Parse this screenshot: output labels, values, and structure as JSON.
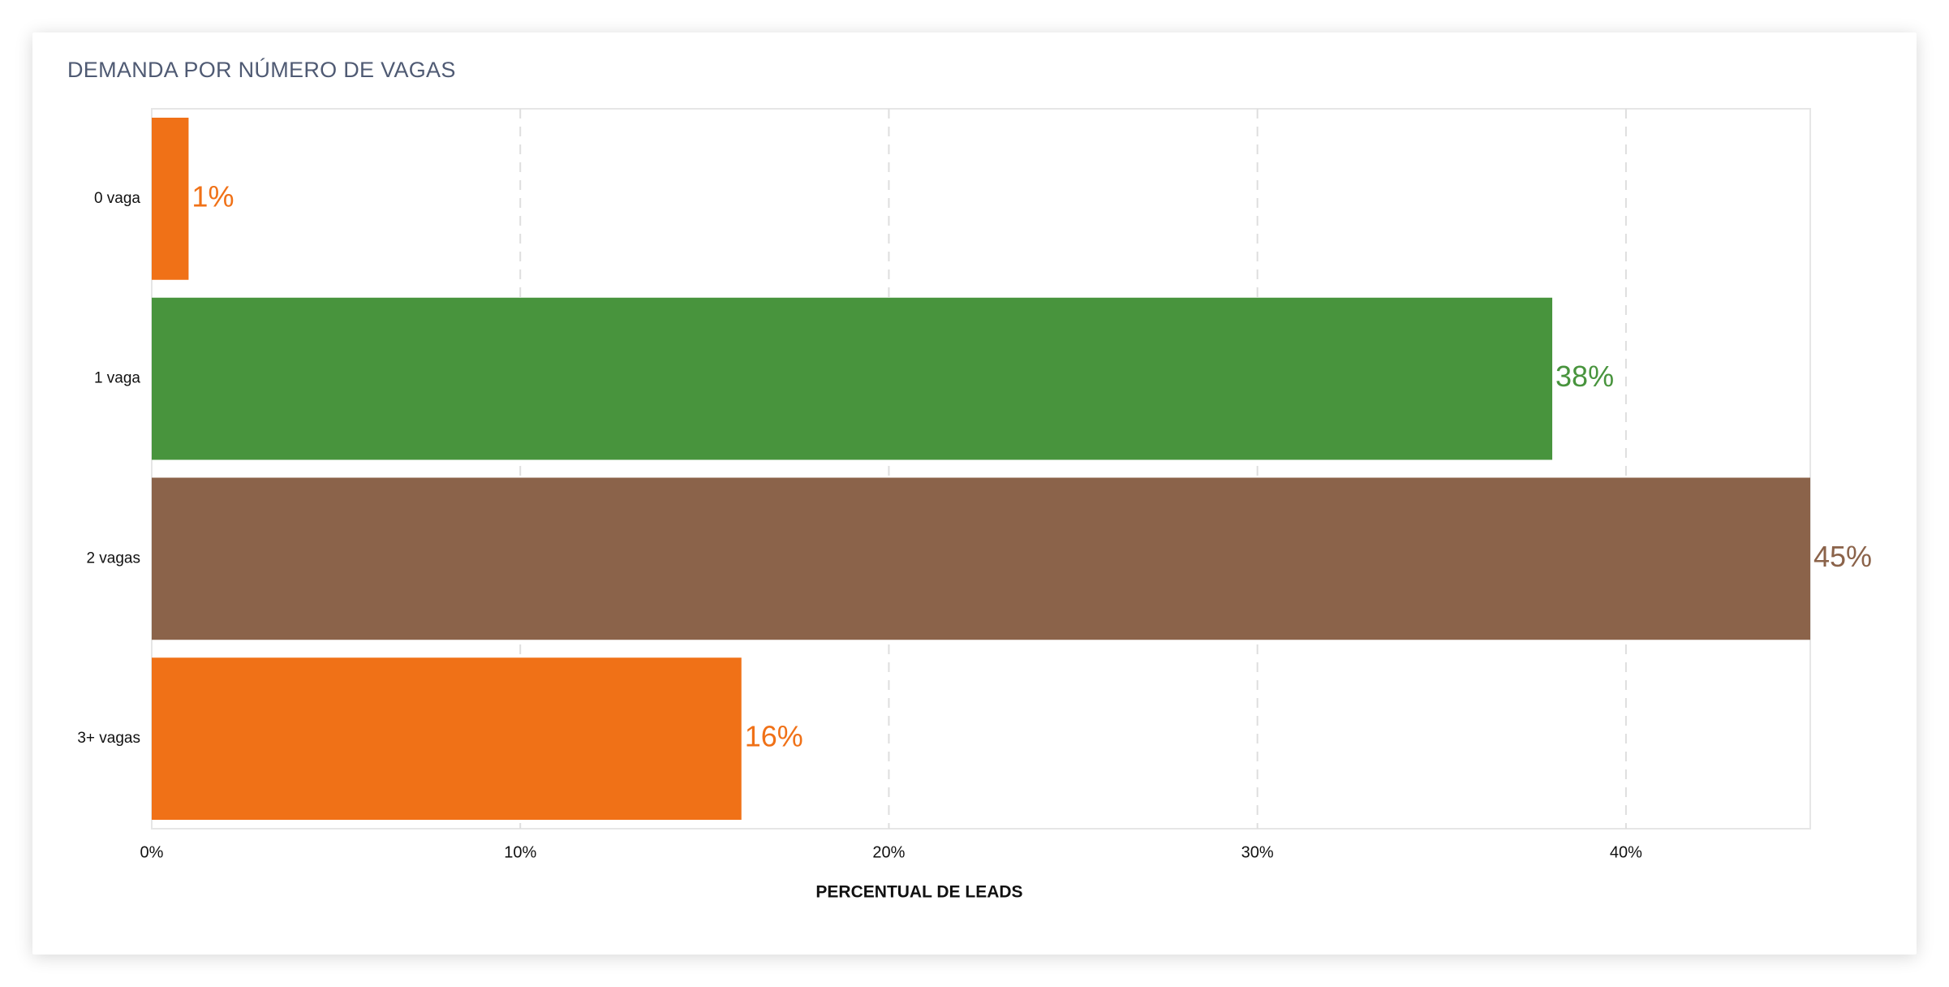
{
  "card": {
    "title": "DEMANDA POR NÚMERO DE VAGAS"
  },
  "chart_data": {
    "type": "bar",
    "orientation": "horizontal",
    "title": "DEMANDA POR NÚMERO DE VAGAS",
    "categories": [
      "0 vaga",
      "1 vaga",
      "2 vagas",
      "3+ vagas"
    ],
    "values": [
      1,
      38,
      45,
      16
    ],
    "data_labels": [
      "1%",
      "38%",
      "45%",
      "16%"
    ],
    "colors": [
      "#f07117",
      "#48943d",
      "#8b634a",
      "#f07117"
    ],
    "xlabel": "PERCENTUAL DE LEADS",
    "ylabel": "",
    "xlim": [
      0,
      45
    ],
    "x_ticks": [
      0,
      10,
      20,
      30,
      40
    ],
    "x_tick_labels": [
      "0%",
      "10%",
      "20%",
      "30%",
      "40%"
    ],
    "grid": true
  }
}
